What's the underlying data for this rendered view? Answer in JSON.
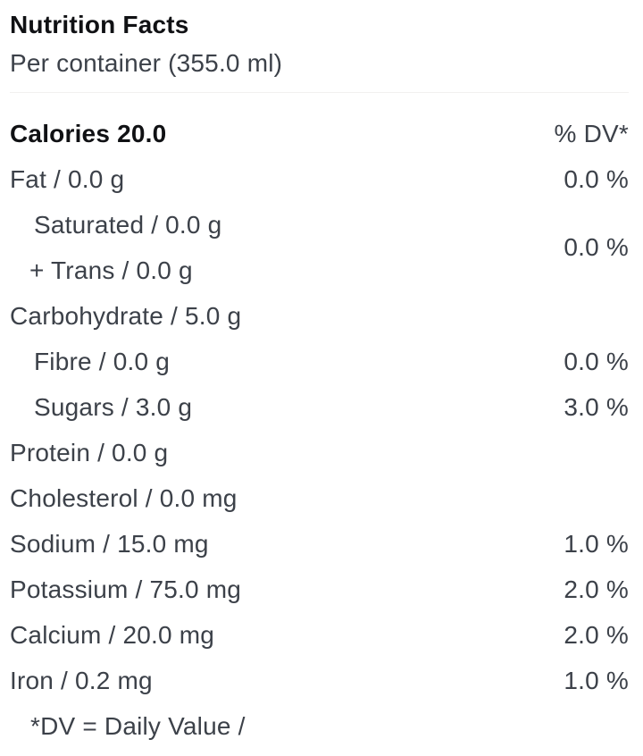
{
  "nutrition": {
    "title": "Nutrition Facts",
    "serving": "Per container (355.0 ml)",
    "calories_label": "Calories 20.0",
    "dv_header": "% DV*",
    "fat": {
      "label": "Fat / 0.0 g",
      "value": "0.0 %"
    },
    "saturated_trans_group": {
      "saturated_label": "Saturated / 0.0 g",
      "trans_label": "+ Trans / 0.0 g",
      "value": "0.0 %"
    },
    "carbohydrate": {
      "label": "Carbohydrate / 5.0 g",
      "value": ""
    },
    "fibre": {
      "label": "Fibre / 0.0 g",
      "value": "0.0 %"
    },
    "sugars": {
      "label": "Sugars / 3.0 g",
      "value": "3.0 %"
    },
    "protein": {
      "label": "Protein / 0.0 g",
      "value": ""
    },
    "cholesterol": {
      "label": "Cholesterol / 0.0 mg",
      "value": ""
    },
    "sodium": {
      "label": "Sodium / 15.0 mg",
      "value": "1.0 %"
    },
    "potassium": {
      "label": "Potassium / 75.0 mg",
      "value": "2.0 %"
    },
    "calcium": {
      "label": "Calcium / 20.0 mg",
      "value": "2.0 %"
    },
    "iron": {
      "label": "Iron / 0.2 mg",
      "value": "1.0 %"
    },
    "footer": "*DV = Daily Value /"
  },
  "colors": {
    "background": "#ffffff",
    "title_text": "#101114",
    "body_text": "#3c4149",
    "divider": "#f2f1ef"
  }
}
